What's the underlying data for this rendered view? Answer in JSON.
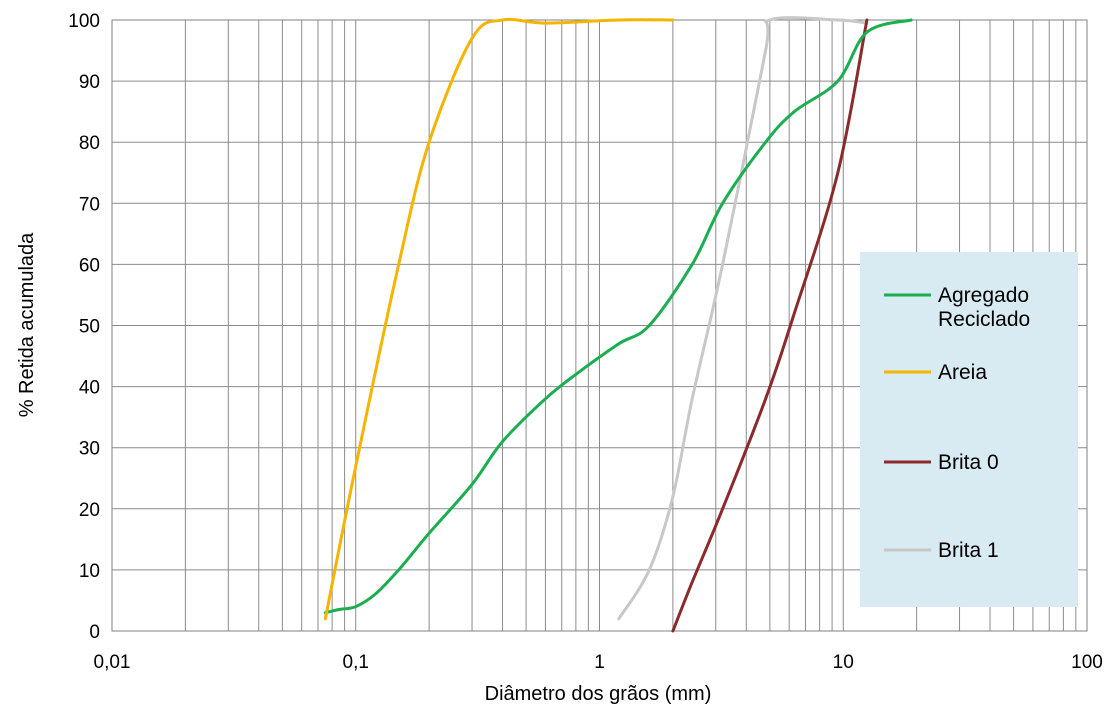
{
  "chart_data": {
    "type": "line",
    "title": "",
    "xlabel": "Diâmetro dos grãos (mm)",
    "ylabel": "% Retida acumulada",
    "x_scale": "log",
    "xlim": [
      0.01,
      100
    ],
    "ylim": [
      0,
      100
    ],
    "x_ticks": [
      "0,01",
      "0,1",
      "1",
      "10",
      "100"
    ],
    "y_ticks": [
      "0",
      "10",
      "20",
      "30",
      "40",
      "50",
      "60",
      "70",
      "80",
      "90",
      "100"
    ],
    "grid": true,
    "legend_position": "right",
    "legend_background": "#d9ebf2",
    "series": [
      {
        "name": "Agregado Reciclado",
        "color": "#1aae50",
        "points": [
          [
            0.075,
            3
          ],
          [
            0.085,
            3.5
          ],
          [
            0.1,
            4
          ],
          [
            0.12,
            6
          ],
          [
            0.15,
            10
          ],
          [
            0.2,
            16
          ],
          [
            0.3,
            24
          ],
          [
            0.4,
            31
          ],
          [
            0.6,
            38
          ],
          [
            0.8,
            42
          ],
          [
            1.2,
            47
          ],
          [
            1.6,
            50
          ],
          [
            2.4,
            60
          ],
          [
            3.2,
            70
          ],
          [
            4.8,
            80
          ],
          [
            6.3,
            85
          ],
          [
            9.5,
            90
          ],
          [
            12.5,
            98
          ],
          [
            19,
            100
          ]
        ]
      },
      {
        "name": "Areia",
        "color": "#f5b400",
        "points": [
          [
            0.075,
            2
          ],
          [
            0.1,
            27
          ],
          [
            0.15,
            60
          ],
          [
            0.2,
            80
          ],
          [
            0.3,
            97
          ],
          [
            0.4,
            100
          ],
          [
            0.6,
            99.5
          ],
          [
            1.2,
            100
          ],
          [
            2,
            100
          ]
        ]
      },
      {
        "name": "Brita 0",
        "color": "#8b2a2a",
        "points": [
          [
            2,
            0
          ],
          [
            2.4,
            8
          ],
          [
            3.2,
            20
          ],
          [
            4.8,
            38
          ],
          [
            6.3,
            52
          ],
          [
            9.5,
            75
          ],
          [
            12.5,
            100
          ]
        ]
      },
      {
        "name": "Brita 1",
        "color": "#c8c8c8",
        "points": [
          [
            1.2,
            2
          ],
          [
            1.6,
            10
          ],
          [
            2,
            22
          ],
          [
            2.4,
            38
          ],
          [
            3.2,
            60
          ],
          [
            4.8,
            95
          ],
          [
            5,
            100
          ],
          [
            9.5,
            100
          ],
          [
            12.5,
            99.5
          ]
        ]
      }
    ]
  }
}
